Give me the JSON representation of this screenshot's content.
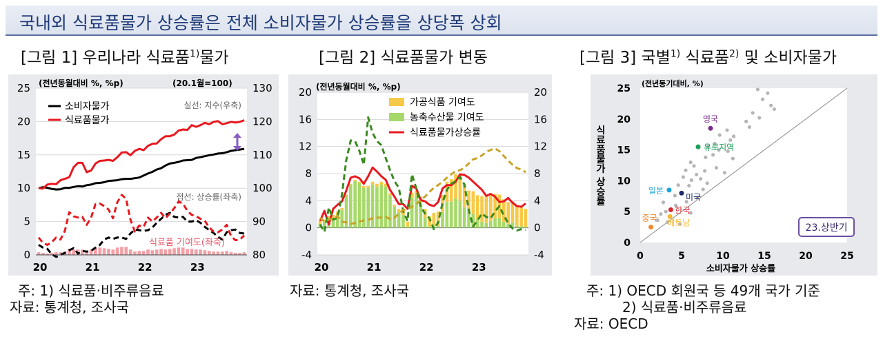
{
  "header": {
    "title": "국내외 식료품물가 상승률은 전체 소비자물가 상승률을 상당폭 상회"
  },
  "fig1": {
    "title": "[그림 1] 우리나라 식료품",
    "title_sup": "1)",
    "title_tail": "물가",
    "unit_left": "(전년동월대비 %, %p)",
    "unit_right": "(20.1월=100)",
    "note_solid": "실선: 지수(우축)",
    "note_dashed": "점선: 상승률(좌축)",
    "contrib_label": "식료품 기여도(좌축)",
    "footnote": "주: 1) 식료품·비주류음료",
    "source": "자료: 통계청, 조사국"
  },
  "fig2": {
    "title": "[그림 2] 식료품물가 변동",
    "unit": "(전년동월대비 %, %p)",
    "source": "자료: 통계청, 조사국"
  },
  "fig3": {
    "title": "[그림 3] 국별",
    "title_sup1": "1)",
    "title_mid": " 식료품",
    "title_sup2": "2)",
    "title_tail": " 및 소비자물가",
    "unit": "(전년동기대비, %)",
    "badge": "23.상반기",
    "footnote1": "주: 1) OECD 회원국 등 49개 국가 기준",
    "footnote2": "2) 식료품·비주류음료",
    "source": "자료: OECD"
  },
  "chart_data": [
    {
      "type": "line",
      "title": "[그림 1] 우리나라 식료품물가",
      "x_ticks": [
        "20",
        "21",
        "22",
        "23"
      ],
      "ylim_left": [
        0,
        25
      ],
      "yticks_left": [
        0,
        5,
        10,
        15,
        20,
        25
      ],
      "ylim_right": [
        80,
        130
      ],
      "yticks_right": [
        80,
        90,
        100,
        110,
        120,
        130
      ],
      "series": [
        {
          "name": "소비자물가",
          "axis": "right",
          "style": "solid",
          "color": "#000000",
          "values": [
            100,
            100.3,
            100.1,
            99.8,
            99.6,
            99.7,
            100.1,
            100.1,
            100.4,
            100.6,
            100.5,
            100.9,
            101.1,
            101.5,
            101.6,
            101.8,
            102.2,
            102.3,
            102.4,
            102.7,
            102.8,
            102.8,
            103,
            103.2,
            103.8,
            104.4,
            104.9,
            105.6,
            106,
            106.8,
            107.4,
            107.6,
            107.9,
            108.3,
            108.4,
            108.5,
            109.1,
            109.3,
            109.6,
            109.9,
            110.1,
            110.4,
            110.5,
            110.8,
            111.2,
            111.4,
            111.6,
            111.8
          ]
        },
        {
          "name": "식료품물가",
          "axis": "right",
          "style": "solid",
          "color": "#e8181e",
          "values": [
            100,
            99.9,
            101.1,
            101.3,
            101.2,
            102.4,
            102.8,
            103.3,
            106.3,
            107.6,
            107.6,
            104.8,
            105.3,
            107.4,
            108.2,
            108.3,
            108.5,
            108.2,
            109.3,
            110.7,
            110.8,
            109.9,
            111.2,
            111.8,
            111.4,
            112.7,
            113.3,
            113.4,
            114.7,
            115.6,
            115.6,
            116.1,
            117.3,
            117.6,
            117.5,
            118.9,
            118.4,
            118.9,
            119.6,
            119.2,
            119.9,
            120.1,
            119.2,
            119.5,
            119.9,
            119.7,
            119.9,
            120.4
          ]
        },
        {
          "name": "소비자물가 상승률",
          "axis": "left",
          "style": "dashed",
          "color": "#000000",
          "values": [
            1.5,
            1.1,
            0.9,
            0.1,
            -0.3,
            0,
            0.3,
            0.7,
            1,
            0.2,
            0.6,
            0.5,
            0.6,
            1.1,
            1.5,
            2.3,
            2.6,
            2.4,
            2.6,
            2.6,
            2.4,
            3.2,
            3.8,
            3.7,
            3.6,
            3.7,
            4.1,
            4.8,
            5.4,
            6,
            6.3,
            5.7,
            5.6,
            5.7,
            5,
            5,
            5.2,
            4.8,
            4.2,
            3.7,
            3.3,
            2.7,
            2.3,
            3.4,
            3.7,
            3.8,
            3.3,
            3.2
          ]
        },
        {
          "name": "식료품물가 상승률",
          "axis": "left",
          "style": "dashed",
          "color": "#e8181e",
          "values": [
            2.6,
            1.8,
            1.5,
            1.9,
            2.6,
            2.3,
            3.6,
            6.4,
            5.8,
            5.6,
            5.7,
            4.5,
            5.6,
            7.6,
            7.7,
            7.3,
            6.8,
            5.5,
            7.9,
            9,
            8.4,
            5.3,
            3.5,
            4.4,
            4.2,
            5.6,
            5,
            5.6,
            6.3,
            5.5,
            6.2,
            7,
            8,
            7.7,
            6.6,
            6,
            5.8,
            5.4,
            5.1,
            4.1,
            3.5,
            3.4,
            3.8,
            4.5,
            2.8,
            2.2,
            2.3,
            2.9
          ]
        },
        {
          "name": "식료품 기여도(좌축)",
          "axis": "left",
          "type": "bar",
          "color": "#f2a0a6",
          "values": [
            0.4,
            0.3,
            0.2,
            0.3,
            0.4,
            0.4,
            0.5,
            0.9,
            0.8,
            0.8,
            0.8,
            0.6,
            0.8,
            1.1,
            1.1,
            1,
            0.9,
            0.8,
            1.1,
            1.2,
            1.2,
            0.8,
            0.5,
            0.6,
            0.6,
            0.8,
            0.7,
            0.8,
            0.9,
            0.8,
            0.9,
            1,
            1.1,
            1.1,
            0.9,
            0.9,
            0.8,
            0.8,
            0.7,
            0.6,
            0.5,
            0.5,
            0.5,
            0.6,
            0.4,
            0.3,
            0.3,
            0.4
          ]
        }
      ]
    },
    {
      "type": "bar",
      "title": "[그림 2] 식료품물가 변동",
      "x_ticks": [
        "20",
        "21",
        "22",
        "23"
      ],
      "ylim": [
        -4,
        20
      ],
      "yticks": [
        -4,
        0,
        4,
        8,
        12,
        16,
        20
      ],
      "series": [
        {
          "name": "가공식품 기여도",
          "type": "bar",
          "color": "#f7c948",
          "values": [
            0.4,
            0.3,
            0.3,
            0.4,
            0.5,
            0.3,
            0.2,
            0.1,
            0.2,
            0.2,
            0.3,
            0.3,
            0.4,
            0.5,
            0.4,
            0.4,
            0.3,
            0.3,
            0.5,
            0.6,
            0.7,
            0.8,
            0.8,
            1,
            1.3,
            1.5,
            1.8,
            2.1,
            2.5,
            3,
            3.3,
            3.6,
            3.7,
            3.5,
            3.2,
            3.4,
            3.5,
            3.8,
            3.9,
            3.8,
            3.6,
            3.5,
            3.3,
            3.2,
            3.1,
            2.9,
            2.8,
            2.7
          ]
        },
        {
          "name": "농축수산물 기여도",
          "type": "bar",
          "color": "#a6d96a",
          "values": [
            0.6,
            0.9,
            1.4,
            1.5,
            1.9,
            2.6,
            4.7,
            6.4,
            6.9,
            6.6,
            5.9,
            5.9,
            6.4,
            6,
            6.4,
            6.1,
            4.8,
            3.1,
            2.3,
            1.9,
            0.2,
            4.4,
            4.7,
            3.6,
            1.5,
            0.2,
            0.4,
            0.3,
            2.3,
            3.8,
            3.9,
            4.3,
            4,
            3,
            2.3,
            2,
            1.3,
            0.9,
            0.7,
            1,
            1.4,
            1.4,
            0.9,
            0.6,
            0.8,
            0.3,
            0.2,
            0.1
          ]
        },
        {
          "name": "식료품물가상승률",
          "type": "line",
          "color": "#e8181e",
          "values": [
            1,
            2.5,
            0.5,
            2.8,
            3.4,
            3.9,
            5.5,
            7.4,
            7.6,
            7.3,
            6.5,
            7.6,
            8.9,
            8.3,
            7.6,
            7.1,
            5.6,
            4.6,
            3.5,
            3.5,
            2.8,
            6.2,
            5.8,
            4.1,
            3.9,
            3.4,
            3.2,
            3.8,
            5.8,
            6.3,
            6.3,
            6.8,
            7.9,
            7.8,
            7.4,
            6.8,
            6.2,
            5.6,
            4.7,
            5,
            4.6,
            3.8,
            3.9,
            4.4,
            3.7,
            3.2,
            3.1,
            3.6
          ]
        },
        {
          "name": "",
          "type": "dashed",
          "color": "#3a8a1e",
          "values": [
            0.5,
            -0.6,
            3,
            1.2,
            1.5,
            4.9,
            10,
            12.9,
            12.8,
            11.3,
            9.3,
            16.3,
            14,
            12.8,
            12.2,
            10.3,
            8.5,
            6.9,
            5.9,
            2.4,
            1,
            7.9,
            5.8,
            3.1,
            2.1,
            1.4,
            -0.2,
            0.8,
            3.7,
            5.6,
            6.5,
            6.9,
            7.5,
            6.4,
            2.6,
            0.2,
            1.1,
            2.1,
            1.6,
            1.4,
            2.4,
            3.2,
            1.8,
            0.7,
            -0.1,
            -0.4,
            -0.2,
            -0.3
          ]
        },
        {
          "name": "",
          "type": "dashed",
          "color": "#c9a227",
          "values": [
            1.5,
            0.9,
            1.2,
            1.4,
            1.7,
            0.9,
            0.8,
            0.6,
            0.7,
            0.9,
            1.1,
            1.2,
            1.4,
            1.5,
            1.5,
            1.6,
            1.3,
            1.5,
            2.1,
            2.6,
            2.8,
            3.1,
            3.5,
            4.1,
            4.6,
            5.3,
            5.9,
            6.3,
            6.8,
            7.4,
            7.9,
            8.4,
            8.5,
            8.9,
            9.5,
            10.1,
            10.3,
            10.7,
            11.2,
            11.5,
            11.7,
            11.3,
            10.6,
            9.9,
            9.3,
            8.8,
            8.6,
            8.2
          ]
        }
      ]
    },
    {
      "type": "scatter",
      "title": "[그림 3] 국별 식료품 및 소비자물가",
      "xlabel": "소비자물가 상승률",
      "ylabel": "식료품물가 상승률",
      "xlim": [
        0,
        25
      ],
      "ylim": [
        0,
        25
      ],
      "ticks": [
        0,
        5,
        10,
        15,
        20,
        25
      ],
      "reference_line": "y = x",
      "labeled_points": [
        {
          "label": "영국",
          "x": 8.5,
          "y": 18.5,
          "color": "#7b2d8e"
        },
        {
          "label": "유로지역",
          "x": 7,
          "y": 15.5,
          "color": "#19a05a"
        },
        {
          "label": "일본",
          "x": 3.5,
          "y": 8.5,
          "color": "#1aa3d9"
        },
        {
          "label": "미국",
          "x": 5,
          "y": 8,
          "color": "#1a2a6a"
        },
        {
          "label": "한국",
          "x": 3.7,
          "y": 5.3,
          "color": "#d9282f"
        },
        {
          "label": "중국",
          "x": 1.3,
          "y": 2.5,
          "color": "#f08a2b"
        },
        {
          "label": "베트남",
          "x": 3.6,
          "y": 4.2,
          "color": "#f5b82e"
        }
      ],
      "points": [
        [
          14.2,
          24.8
        ],
        [
          15.4,
          24.2
        ],
        [
          14.8,
          23.2
        ],
        [
          15.8,
          22.2
        ],
        [
          16.2,
          21.6
        ],
        [
          13.6,
          21
        ],
        [
          14.4,
          20.2
        ],
        [
          12.8,
          19.6
        ],
        [
          13.2,
          18.7
        ],
        [
          10.5,
          18.2
        ],
        [
          9.6,
          17.4
        ],
        [
          11.3,
          17.2
        ],
        [
          10.9,
          16.6
        ],
        [
          9,
          16
        ],
        [
          8.2,
          15.6
        ],
        [
          9.5,
          15
        ],
        [
          10.6,
          14.8
        ],
        [
          8.8,
          14.2
        ],
        [
          7.9,
          13.8
        ],
        [
          11.2,
          13.6
        ],
        [
          6.1,
          13
        ],
        [
          6.5,
          12.4
        ],
        [
          9.2,
          12.1
        ],
        [
          5.5,
          11.7
        ],
        [
          7.8,
          11.6
        ],
        [
          10.2,
          11.3
        ],
        [
          6.8,
          11
        ],
        [
          5.2,
          10.6
        ],
        [
          7.3,
          10.3
        ],
        [
          6.2,
          10.1
        ],
        [
          8.1,
          9.6
        ],
        [
          5.9,
          9.2
        ],
        [
          4.6,
          9.3
        ],
        [
          7.6,
          8.6
        ],
        [
          4.2,
          7.6
        ],
        [
          6.9,
          7.2
        ],
        [
          5.6,
          6.6
        ],
        [
          2.8,
          6.5
        ],
        [
          4.3,
          6
        ],
        [
          3.1,
          5
        ],
        [
          2.5,
          4.6
        ],
        [
          6.1,
          4.8
        ],
        [
          2.1,
          3.6
        ],
        [
          3.3,
          3.3
        ],
        [
          4.8,
          3
        ]
      ]
    }
  ]
}
